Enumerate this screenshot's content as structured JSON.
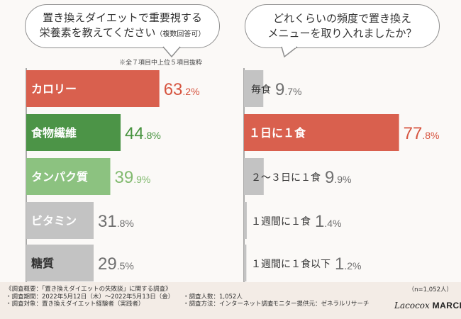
{
  "colors": {
    "background": "#fbf9f7",
    "band": "#f3ece6",
    "red": "#d9604e",
    "red_text": "#d6543f",
    "green_dark": "#4c9447",
    "green_dark_text": "#47933f",
    "green_light": "#8cc280",
    "green_light_text": "#82ba6f",
    "gray": "#c3c3c3",
    "gray_text": "#6f6f6f"
  },
  "left_question": {
    "line1": "置き換えダイエットで重要視する",
    "line2": "栄養素を教えてください",
    "line2_small": "（複数回答可）",
    "note": "※全７項目中上位５項目抜粋"
  },
  "right_question": {
    "line1": "どれくらいの頻度で置き換え",
    "line2": "メニューを取り入れましたか？"
  },
  "chart_data": [
    {
      "type": "bar",
      "orientation": "horizontal",
      "title": "置き換えダイエットで重要視する栄養素を教えてください（複数回答可）",
      "unit": "%",
      "xlim": [
        0,
        100
      ],
      "categories": [
        "カロリー",
        "食物繊維",
        "タンパク質",
        "ビタミン",
        "糖質"
      ],
      "values": [
        63.2,
        44.8,
        39.9,
        31.8,
        29.5
      ],
      "bar_colors": [
        "#d9604e",
        "#4c9447",
        "#8cc280",
        "#c3c3c3",
        "#c3c3c3"
      ],
      "label_colors": [
        "#d6543f",
        "#47933f",
        "#82ba6f",
        "#6f6f6f",
        "#6f6f6f"
      ],
      "label_in_bar_colors": [
        "#ffffff",
        "#ffffff",
        "#ffffff",
        "#ffffff",
        "#333333"
      ]
    },
    {
      "type": "bar",
      "orientation": "horizontal",
      "title": "どれくらいの頻度で置き換えメニューを取り入れましたか？",
      "unit": "%",
      "xlim": [
        0,
        100
      ],
      "categories": [
        "毎食",
        "１日に１食",
        "２〜３日に１食",
        "１週間に１食",
        "１週間に１食以下"
      ],
      "values": [
        9.7,
        77.8,
        9.9,
        1.4,
        1.2
      ],
      "bar_colors": [
        "#c3c3c3",
        "#d9604e",
        "#c3c3c3",
        "#c3c3c3",
        "#c3c3c3"
      ],
      "label_colors": [
        "#6f6f6f",
        "#d6543f",
        "#6f6f6f",
        "#6f6f6f",
        "#6f6f6f"
      ],
      "label_in_bar_colors": [
        "#333333",
        "#ffffff",
        "#333333",
        "#333333",
        "#333333"
      ]
    }
  ],
  "footer": {
    "overview": "《調査概要：「置き換えダイエットの失敗談」に関する調査》",
    "period": "・調査期間：2022年5月12日（木）〜2022年5月13日（金）",
    "respondents": "・調査人数：1,052人",
    "target": "・調査対象：置き換えダイエット経験者（実践者）",
    "method": "・調査方法：インターネット調査",
    "monitor": "・モニター提供元：ゼネラルリサーチ",
    "sample_size": "（n=1,052人）",
    "logo_script": "Lacocox",
    "logo_bold": "MARCHE"
  }
}
